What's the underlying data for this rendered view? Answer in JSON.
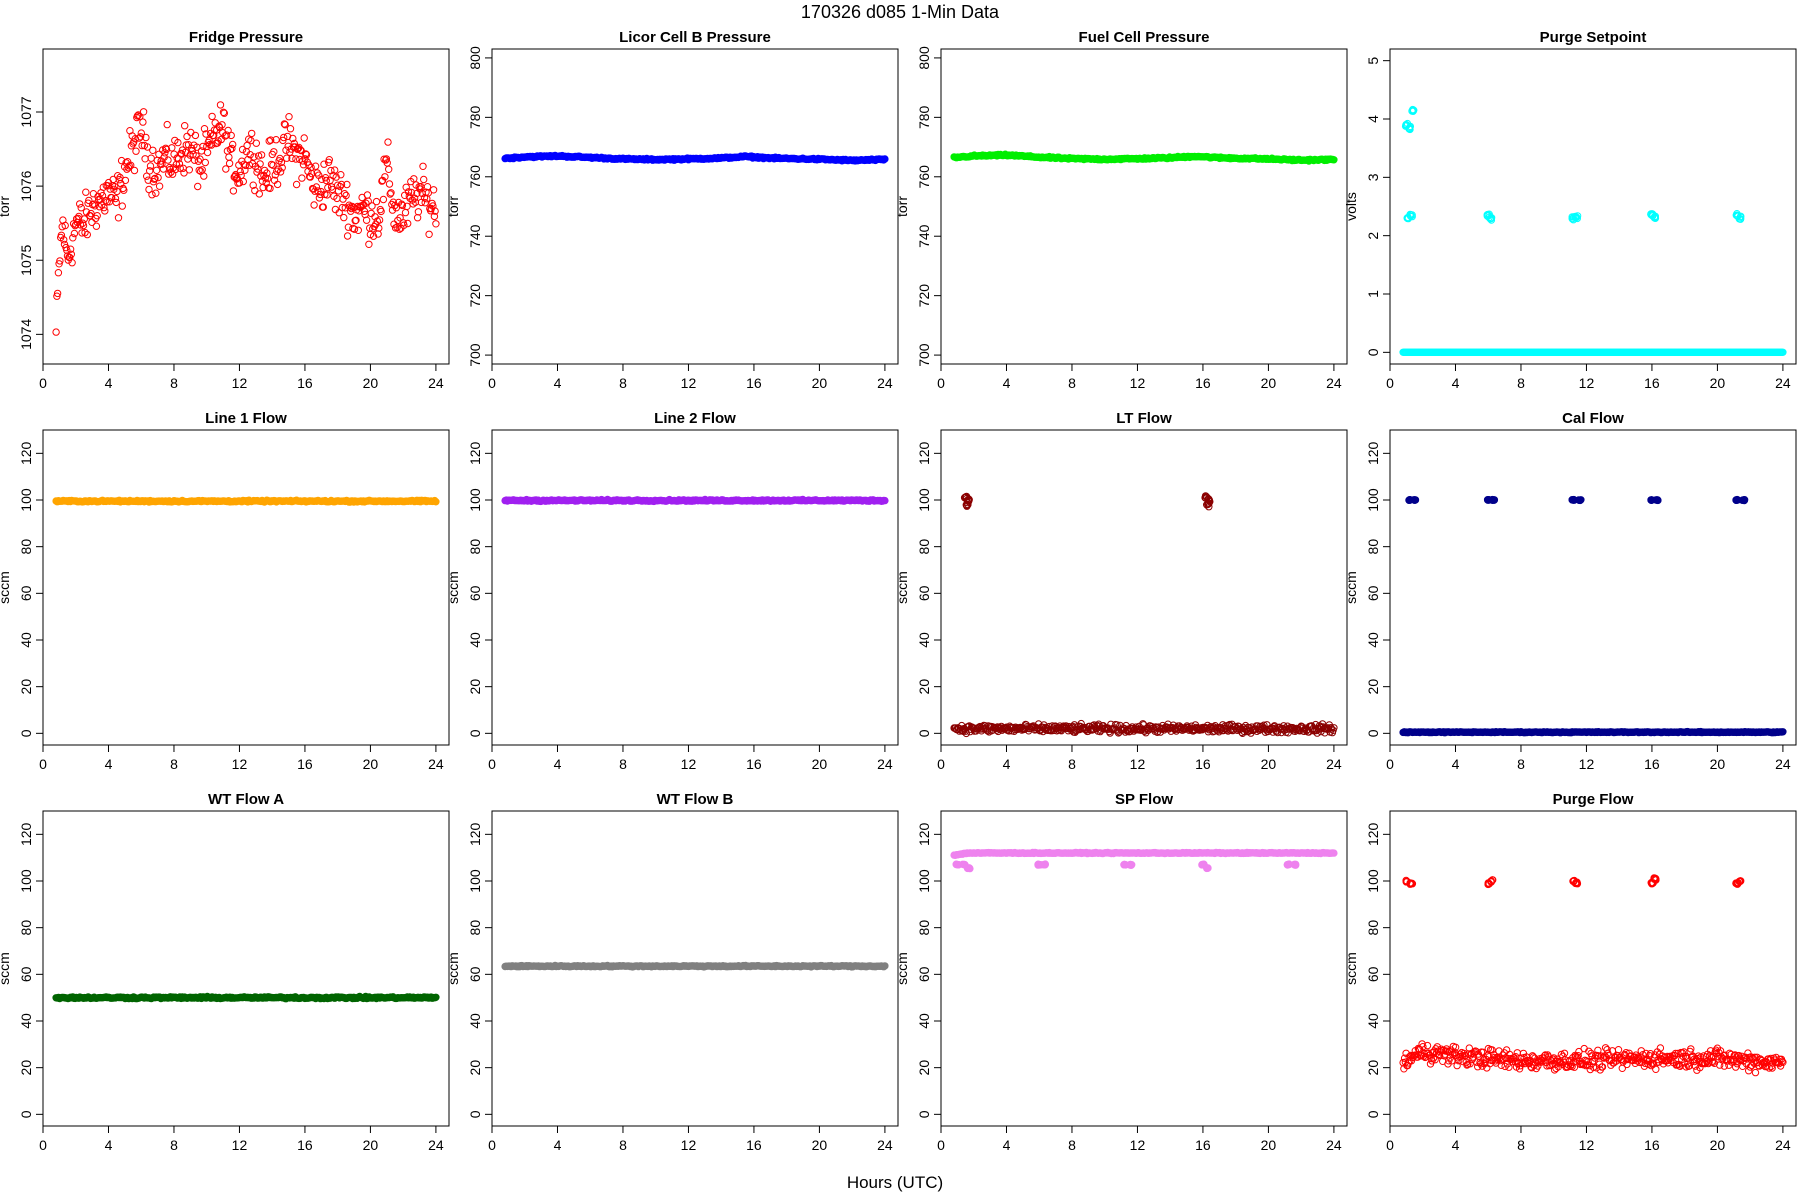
{
  "figure": {
    "title": "170326   d085   1-Min Data",
    "xlabel": "Hours (UTC)"
  },
  "chart_data": [
    {
      "type": "scatter",
      "title": "Fridge Pressure",
      "ylabel": "torr",
      "color": "#ff0000",
      "marker": "open",
      "xlim": [
        0,
        24.8
      ],
      "ylim": [
        1073.6,
        1077.85
      ],
      "xticks": [
        0,
        4,
        8,
        12,
        16,
        20,
        24
      ],
      "yticks": [
        1074,
        1075,
        1076,
        1077
      ],
      "series": [
        {
          "x": [
            0.8,
            1.0,
            1.2,
            1.5,
            2.0,
            2.5,
            3.0,
            3.5,
            4.0,
            4.5,
            5.0,
            5.5,
            6.0,
            6.5,
            7.0,
            7.5,
            8.0,
            8.5,
            9.0,
            9.5,
            10.0,
            10.5,
            11.0,
            11.5,
            12.0,
            12.5,
            13.0,
            13.5,
            14.0,
            14.5,
            15.0,
            15.5,
            16.0,
            16.5,
            17.0,
            17.5,
            18.0,
            18.5,
            19.0,
            19.5,
            20.0,
            20.5,
            21.0,
            21.5,
            22.0,
            22.5,
            23.0,
            23.5,
            24.0
          ],
          "y": [
            1074.0,
            1075.0,
            1075.5,
            1075.0,
            1075.5,
            1075.5,
            1075.7,
            1075.8,
            1075.9,
            1075.8,
            1076.2,
            1076.5,
            1076.8,
            1076.3,
            1076.2,
            1076.4,
            1076.3,
            1076.5,
            1076.5,
            1076.3,
            1076.4,
            1076.7,
            1076.8,
            1076.3,
            1076.2,
            1076.5,
            1076.4,
            1076.1,
            1076.3,
            1076.4,
            1076.6,
            1076.4,
            1076.4,
            1076.0,
            1076.0,
            1076.1,
            1075.9,
            1075.8,
            1075.6,
            1075.7,
            1075.6,
            1075.6,
            1076.3,
            1075.6,
            1075.6,
            1075.8,
            1075.9,
            1075.8,
            1075.7
          ],
          "spread": 0.5
        }
      ]
    },
    {
      "type": "scatter",
      "title": "Licor Cell B Pressure",
      "ylabel": "torr",
      "color": "#0000ff",
      "marker": "filled",
      "xlim": [
        0,
        24.8
      ],
      "ylim": [
        697,
        803
      ],
      "xticks": [
        0,
        4,
        8,
        12,
        16,
        20,
        24
      ],
      "yticks": [
        700,
        720,
        740,
        760,
        780,
        800
      ],
      "series": [
        {
          "x": [
            0.8,
            2.0,
            4.0,
            6.0,
            8.0,
            10.0,
            12.0,
            14.0,
            15.5,
            17.0,
            20.0,
            22.0,
            24.0
          ],
          "y": [
            766.2,
            766.7,
            767.0,
            766.5,
            766.0,
            765.8,
            766.0,
            766.3,
            766.8,
            766.3,
            765.9,
            765.5,
            765.8
          ],
          "spread": 0.4
        }
      ]
    },
    {
      "type": "scatter",
      "title": "Fuel Cell Pressure",
      "ylabel": "torr",
      "color": "#00ee00",
      "marker": "filled",
      "xlim": [
        0,
        24.8
      ],
      "ylim": [
        697,
        803
      ],
      "xticks": [
        0,
        4,
        8,
        12,
        16,
        20,
        24
      ],
      "yticks": [
        700,
        720,
        740,
        760,
        780,
        800
      ],
      "series": [
        {
          "x": [
            0.8,
            2.0,
            4.0,
            6.0,
            8.0,
            10.0,
            12.0,
            14.0,
            15.5,
            17.0,
            20.0,
            22.0,
            24.0
          ],
          "y": [
            766.5,
            767.0,
            767.3,
            766.6,
            766.1,
            765.9,
            766.1,
            766.4,
            766.9,
            766.4,
            766.0,
            765.6,
            765.8
          ],
          "spread": 0.4
        }
      ]
    },
    {
      "type": "scatter",
      "title": "Purge Setpoint",
      "ylabel": "volts",
      "color": "#00ffff",
      "marker": "open",
      "xlim": [
        0,
        24.8
      ],
      "ylim": [
        -0.2,
        5.2
      ],
      "xticks": [
        0,
        4,
        8,
        12,
        16,
        20,
        24
      ],
      "yticks": [
        0,
        1,
        2,
        3,
        4,
        5
      ],
      "series": [
        {
          "x": [
            0.8,
            4,
            8,
            12,
            16,
            20,
            24
          ],
          "y": [
            0,
            0,
            0,
            0,
            0,
            0,
            0
          ],
          "spread": 0
        },
        {
          "x": [
            1.0,
            1.2,
            1.4,
            1.05,
            1.3
          ],
          "y": [
            3.9,
            3.85,
            4.15,
            2.3,
            2.35
          ],
          "spread": 0.05,
          "cluster": true
        },
        {
          "x": [
            6.0,
            6.15,
            11.2,
            11.4,
            16.0,
            16.2,
            21.2,
            21.4
          ],
          "y": [
            2.35,
            2.3,
            2.3,
            2.32,
            2.35,
            2.32,
            2.35,
            2.3
          ],
          "spread": 0.05,
          "cluster": true
        }
      ]
    },
    {
      "type": "scatter",
      "title": "Line 1 Flow",
      "ylabel": "sccm",
      "color": "#ffa500",
      "marker": "filled",
      "xlim": [
        0,
        24.8
      ],
      "ylim": [
        -5,
        130
      ],
      "xticks": [
        0,
        4,
        8,
        12,
        16,
        20,
        24
      ],
      "yticks": [
        0,
        20,
        40,
        60,
        80,
        100,
        120
      ],
      "series": [
        {
          "x": [
            0.8,
            4,
            8,
            12,
            16,
            20,
            24
          ],
          "y": [
            99.5,
            99.5,
            99.5,
            99.5,
            99.5,
            99.5,
            99.5
          ],
          "spread": 0.5
        }
      ]
    },
    {
      "type": "scatter",
      "title": "Line 2 Flow",
      "ylabel": "sccm",
      "color": "#a020f0",
      "marker": "filled",
      "xlim": [
        0,
        24.8
      ],
      "ylim": [
        -5,
        130
      ],
      "xticks": [
        0,
        4,
        8,
        12,
        16,
        20,
        24
      ],
      "yticks": [
        0,
        20,
        40,
        60,
        80,
        100,
        120
      ],
      "series": [
        {
          "x": [
            0.8,
            4,
            8,
            12,
            16,
            20,
            24
          ],
          "y": [
            99.8,
            99.8,
            99.8,
            99.8,
            99.8,
            99.8,
            99.8
          ],
          "spread": 0.5
        }
      ]
    },
    {
      "type": "scatter",
      "title": "LT Flow",
      "ylabel": "sccm",
      "color": "#8b0000",
      "marker": "open",
      "xlim": [
        0,
        24.8
      ],
      "ylim": [
        -5,
        130
      ],
      "xticks": [
        0,
        4,
        8,
        12,
        16,
        20,
        24
      ],
      "yticks": [
        0,
        20,
        40,
        60,
        80,
        100,
        120
      ],
      "series": [
        {
          "x": [
            0.8,
            4,
            8,
            12,
            16,
            20,
            24
          ],
          "y": [
            2,
            2,
            2,
            2,
            2,
            2,
            2
          ],
          "spread": 2.5
        },
        {
          "x": [
            1.5,
            1.6,
            1.7,
            16.2,
            16.3,
            16.4
          ],
          "y": [
            101,
            98,
            100,
            101,
            98,
            100
          ],
          "spread": 1.5,
          "cluster": true
        }
      ]
    },
    {
      "type": "scatter",
      "title": "Cal Flow",
      "ylabel": "sccm",
      "color": "#00008b",
      "marker": "filled",
      "xlim": [
        0,
        24.8
      ],
      "ylim": [
        -5,
        130
      ],
      "xticks": [
        0,
        4,
        8,
        12,
        16,
        20,
        24
      ],
      "yticks": [
        0,
        20,
        40,
        60,
        80,
        100,
        120
      ],
      "series": [
        {
          "x": [
            0.8,
            4,
            8,
            12,
            16,
            20,
            24
          ],
          "y": [
            0.5,
            0.5,
            0.5,
            0.5,
            0.5,
            0.5,
            0.5
          ],
          "spread": 0.3
        },
        {
          "x": [
            1.2,
            1.5,
            6.0,
            6.3,
            11.2,
            11.6,
            16.0,
            16.3,
            21.2,
            21.6
          ],
          "y": [
            100,
            100,
            100,
            100,
            100,
            100,
            100,
            100,
            100,
            100
          ],
          "spread": 0.3,
          "cluster": true
        }
      ]
    },
    {
      "type": "scatter",
      "title": "WT Flow A",
      "ylabel": "sccm",
      "color": "#006400",
      "marker": "filled",
      "xlim": [
        0,
        24.8
      ],
      "ylim": [
        -5,
        130
      ],
      "xticks": [
        0,
        4,
        8,
        12,
        16,
        20,
        24
      ],
      "yticks": [
        0,
        20,
        40,
        60,
        80,
        100,
        120
      ],
      "series": [
        {
          "x": [
            0.8,
            4,
            8,
            12,
            16,
            20,
            24
          ],
          "y": [
            50,
            50,
            50,
            50,
            50,
            50,
            50
          ],
          "spread": 0.6
        }
      ]
    },
    {
      "type": "scatter",
      "title": "WT Flow B",
      "ylabel": "sccm",
      "color": "#808080",
      "marker": "filled",
      "xlim": [
        0,
        24.8
      ],
      "ylim": [
        -5,
        130
      ],
      "xticks": [
        0,
        4,
        8,
        12,
        16,
        20,
        24
      ],
      "yticks": [
        0,
        20,
        40,
        60,
        80,
        100,
        120
      ],
      "series": [
        {
          "x": [
            0.8,
            4,
            8,
            12,
            16,
            20,
            24
          ],
          "y": [
            63.5,
            63.5,
            63.5,
            63.5,
            63.5,
            63.5,
            63.5
          ],
          "spread": 0.4
        }
      ]
    },
    {
      "type": "scatter",
      "title": "SP Flow",
      "ylabel": "sccm",
      "color": "#ee82ee",
      "marker": "filled",
      "xlim": [
        0,
        24.8
      ],
      "ylim": [
        -5,
        130
      ],
      "xticks": [
        0,
        4,
        8,
        12,
        16,
        20,
        24
      ],
      "yticks": [
        0,
        20,
        40,
        60,
        80,
        100,
        120
      ],
      "series": [
        {
          "x": [
            0.8,
            1.6,
            4,
            8,
            11,
            12,
            16,
            20,
            24
          ],
          "y": [
            111,
            112,
            112,
            112,
            112,
            112,
            112,
            112,
            112
          ],
          "spread": 0.3
        },
        {
          "x": [
            1.0,
            1.4,
            1.7,
            6.0,
            6.3,
            11.2,
            11.6,
            16.0,
            16.3,
            21.2,
            21.6
          ],
          "y": [
            107,
            107,
            105.5,
            107,
            107,
            107,
            107,
            107,
            105.5,
            107,
            107
          ],
          "spread": 0.3,
          "cluster": true
        }
      ]
    },
    {
      "type": "scatter",
      "title": "Purge Flow",
      "ylabel": "sccm",
      "color": "#ff0000",
      "marker": "open",
      "xlim": [
        0,
        24.8
      ],
      "ylim": [
        -5,
        130
      ],
      "xticks": [
        0,
        4,
        8,
        12,
        16,
        20,
        24
      ],
      "yticks": [
        0,
        20,
        40,
        60,
        80,
        100,
        120
      ],
      "series": [
        {
          "x": [
            0.8,
            2,
            4,
            8,
            12,
            16,
            20,
            24
          ],
          "y": [
            22,
            27,
            25,
            23,
            23,
            24,
            24,
            22
          ],
          "spread": 6
        },
        {
          "x": [
            1.0,
            1.3,
            6.0,
            6.2,
            11.2,
            11.4,
            16.0,
            16.2,
            21.2,
            21.4
          ],
          "y": [
            100,
            99,
            99,
            100,
            100,
            99,
            99,
            101,
            99,
            100
          ],
          "spread": 0.8,
          "cluster": true
        }
      ]
    }
  ]
}
